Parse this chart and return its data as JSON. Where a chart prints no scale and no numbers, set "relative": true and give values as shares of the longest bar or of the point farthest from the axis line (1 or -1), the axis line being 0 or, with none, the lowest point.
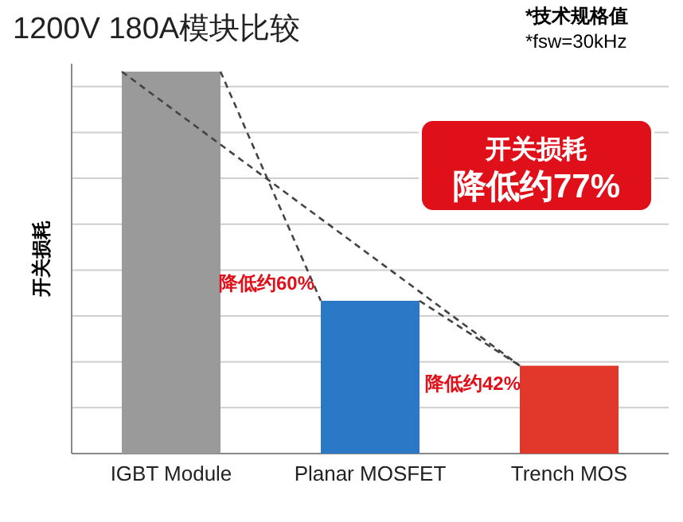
{
  "chart_data": {
    "type": "bar",
    "title": "1200V 180A模块比较",
    "ylabel": "开关损耗",
    "categories": [
      "IGBT Module",
      "Planar MOSFET",
      "Trench MOS"
    ],
    "values": [
      1,
      0.4,
      0.23
    ],
    "colors": [
      "#9a9a9a",
      "#2b78c6",
      "#e2382b"
    ],
    "relative": true,
    "grid": "y",
    "annotations": [
      "*技术规格值",
      "*fsw=30kHz",
      "开关损耗",
      "降低约77%",
      "降低约60%",
      "降低约42%"
    ]
  }
}
